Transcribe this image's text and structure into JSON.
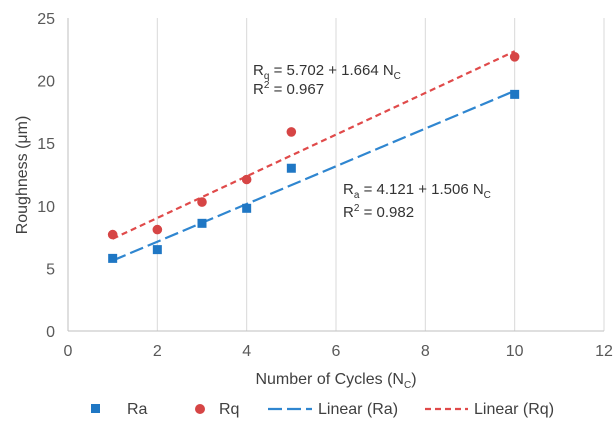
{
  "chart_data": {
    "type": "scatter",
    "xlabel": "Number of Cycles (N",
    "xlabel_sub": "C",
    "xlabel_end": ")",
    "ylabel": "Roughness (μm)",
    "xlim": [
      0,
      12
    ],
    "ylim": [
      0,
      25
    ],
    "xticks": [
      0,
      2,
      4,
      6,
      8,
      10,
      12
    ],
    "yticks": [
      0,
      5,
      10,
      15,
      20,
      25
    ],
    "grid": "vertical",
    "legend_position": "bottom",
    "series": [
      {
        "name": "Ra",
        "marker": "square",
        "color": "#1f77c4",
        "x": [
          1,
          2,
          3,
          4,
          5,
          10
        ],
        "y": [
          5.8,
          6.5,
          8.6,
          9.8,
          13.0,
          18.9
        ]
      },
      {
        "name": "Rq",
        "marker": "circle",
        "color": "#d64545",
        "x": [
          1,
          2,
          3,
          4,
          5,
          10
        ],
        "y": [
          7.7,
          8.1,
          10.3,
          12.1,
          15.9,
          21.9
        ]
      }
    ],
    "trendlines": [
      {
        "name": "Linear (Ra)",
        "intercept": 4.121,
        "slope": 1.506,
        "x_range": [
          1,
          10
        ],
        "color": "#2f86d0",
        "dash": "long",
        "eq_main": "R",
        "eq_sub": "a",
        "eq_mid": " = 4.121 + 1.506 N",
        "eq_sub2": "C",
        "r2_label": "R",
        "r2_sup": "2",
        "r2_value": " = 0.982"
      },
      {
        "name": "Linear (Rq)",
        "intercept": 5.702,
        "slope": 1.664,
        "x_range": [
          1,
          10
        ],
        "color": "#e04a4a",
        "dash": "short",
        "eq_main": "R",
        "eq_sub": "q",
        "eq_mid": " = 5.702 + 1.664 N",
        "eq_sub2": "C",
        "r2_label": "R",
        "r2_sup": "2",
        "r2_value": " = 0.967"
      }
    ]
  }
}
